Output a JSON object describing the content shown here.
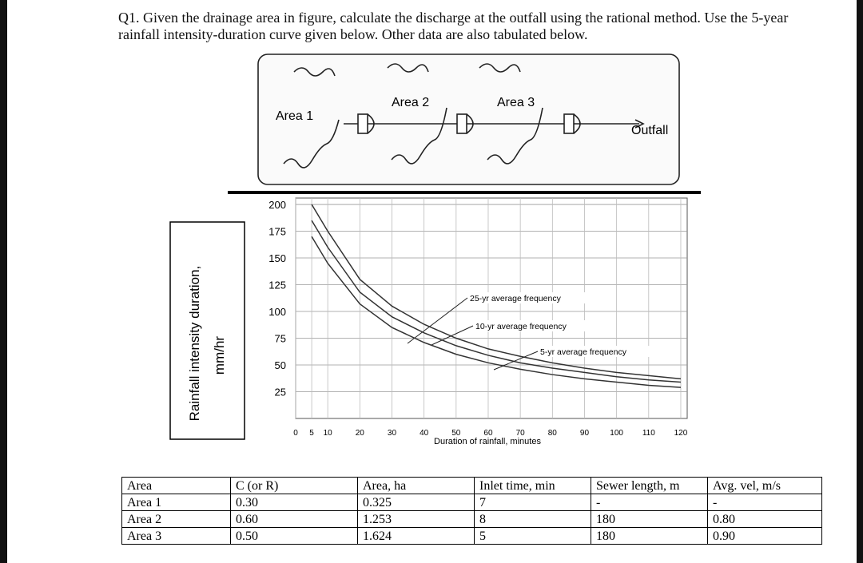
{
  "question": "Q1. Given the drainage area in figure, calculate the discharge at the outfall using the rational method. Use the 5-year rainfall intensity-duration curve given below. Other data are also tabulated below.",
  "diagram": {
    "labels": [
      "Area 1",
      "Area 2",
      "Area 3",
      "Outfall"
    ]
  },
  "chart_data": {
    "type": "line",
    "y_label": [
      "Rainfall intensity duration,",
      "mm/hr"
    ],
    "x_label": "Duration of rainfall, minutes",
    "x": [
      5,
      10,
      20,
      30,
      40,
      50,
      60,
      70,
      80,
      90,
      100,
      110,
      120
    ],
    "series": [
      {
        "name": "25-yr average frequency",
        "color": "#333333",
        "values": [
          200,
          175,
          130,
          105,
          88,
          75,
          65,
          58,
          52,
          47,
          43,
          40,
          37
        ]
      },
      {
        "name": "10-yr average frequency",
        "color": "#333333",
        "values": [
          185,
          160,
          118,
          95,
          80,
          68,
          59,
          52,
          47,
          43,
          39,
          36,
          34
        ]
      },
      {
        "name": "5-yr average frequency",
        "color": "#333333",
        "values": [
          170,
          145,
          107,
          85,
          71,
          60,
          52,
          46,
          41,
          37,
          34,
          31,
          29
        ]
      }
    ],
    "xlim": [
      0,
      122
    ],
    "ylim": [
      0,
      206
    ],
    "xticks": [
      0,
      5,
      10,
      20,
      30,
      40,
      50,
      60,
      70,
      80,
      90,
      100,
      110,
      120
    ],
    "yticks": [
      25,
      50,
      75,
      100,
      125,
      150,
      175,
      200
    ],
    "grid": true
  },
  "table": {
    "header": [
      "Area",
      "C (or R)",
      "Area, ha",
      "Inlet time, min",
      "Sewer length, m",
      "Avg. vel, m/s"
    ],
    "rows": [
      [
        "Area 1",
        "0.30",
        "0.325",
        "7",
        "-",
        "-"
      ],
      [
        "Area 2",
        "0.60",
        "1.253",
        "8",
        "180",
        "0.80"
      ],
      [
        "Area 3",
        "0.50",
        "1.624",
        "5",
        "180",
        "0.90"
      ]
    ]
  }
}
